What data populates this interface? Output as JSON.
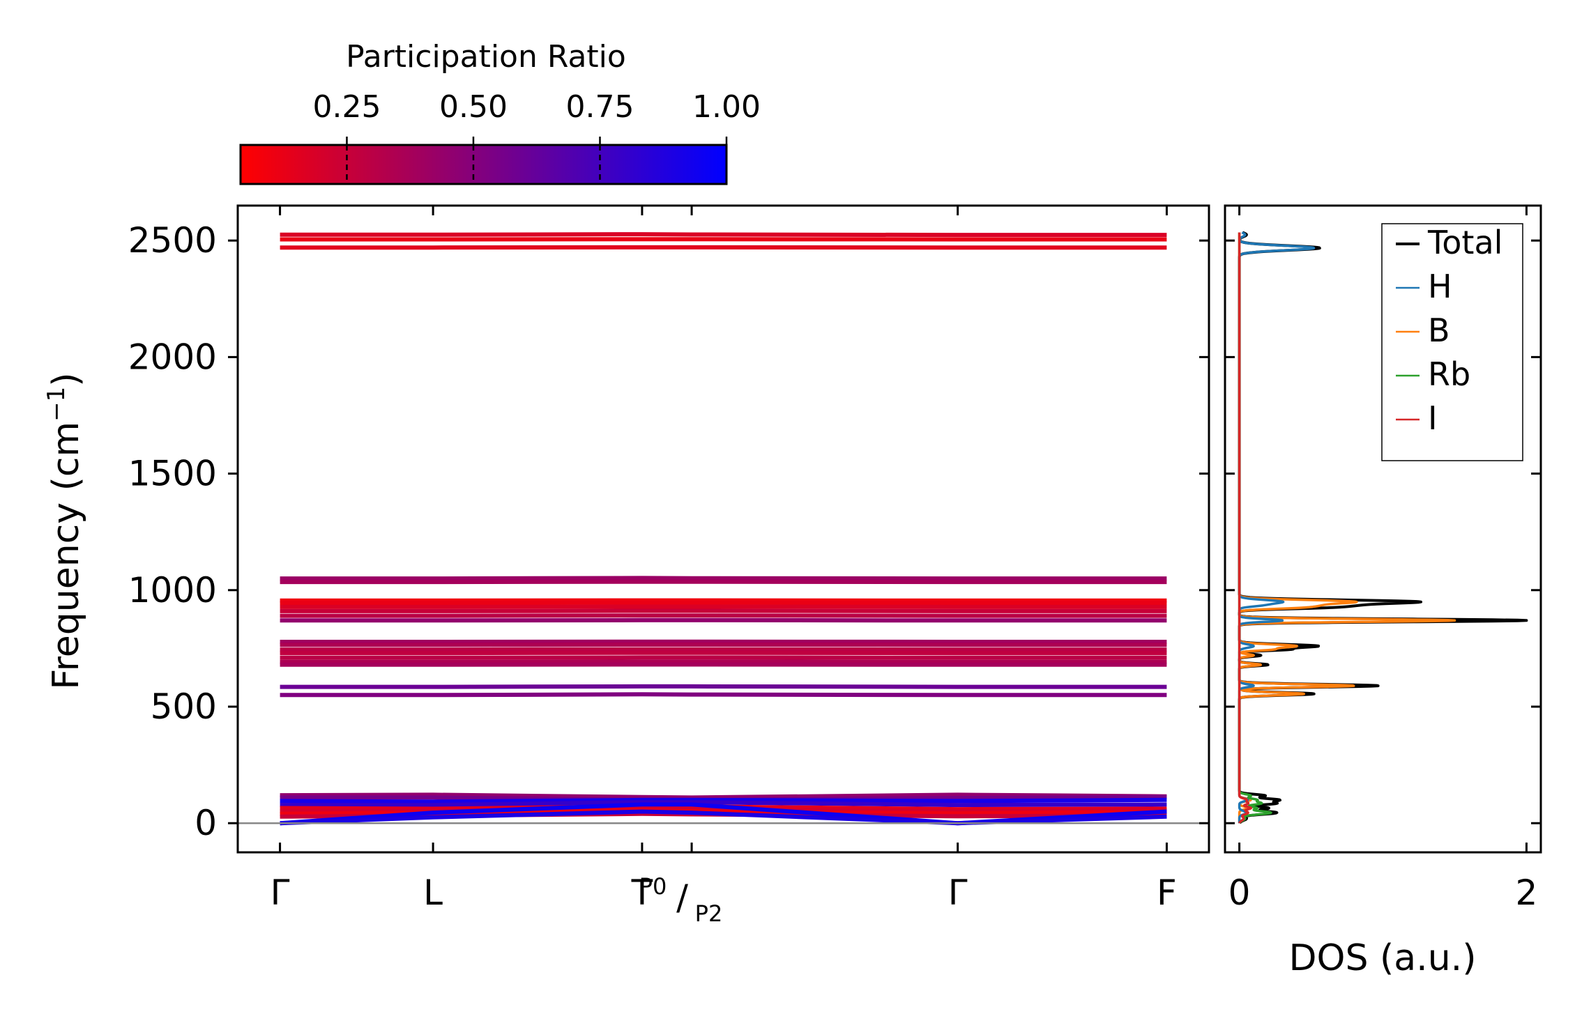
{
  "chart_data": [
    {
      "type": "line",
      "name": "phonon-band-structure",
      "ylabel_main": "Frequency (cm",
      "ylabel_sup": "−1",
      "ylabel_close": ")",
      "ylim": [
        -125,
        2650
      ],
      "yticks": [
        0,
        500,
        1000,
        1500,
        2000,
        2500
      ],
      "ytick_labels": [
        "0",
        "500",
        "1000",
        "1500",
        "2000",
        "2500"
      ],
      "x_positions": [
        0,
        0.725,
        1.715,
        1.95,
        3.21,
        4.2
      ],
      "xlim": [
        -0.2,
        4.4
      ],
      "kpoint_labels": [
        "Γ",
        "L",
        "T",
        "Γ",
        "F"
      ],
      "kpoint_index": [
        0,
        1,
        2,
        4,
        5
      ],
      "discontinuity_label": {
        "main": "/",
        "sub_left": "P0",
        "sub_right": "P2"
      },
      "zero_line": 0,
      "colorbar": {
        "title": "Participation Ratio",
        "range": [
          0.04,
          1.0
        ],
        "ticks": [
          0.25,
          0.5,
          0.75,
          1.0
        ],
        "tick_labels": [
          "0.25",
          "0.50",
          "0.75",
          "1.00"
        ],
        "color_low": "#ff0000",
        "color_mid": "#800080",
        "color_high": "#0000ff"
      },
      "series": [
        {
          "name": "band-high-1",
          "freq": [
            2525,
            2525,
            2527,
            2526,
            2524,
            2524
          ],
          "pr": 0.18
        },
        {
          "name": "band-high-2",
          "freq": [
            2505,
            2505,
            2506,
            2506,
            2505,
            2505
          ],
          "pr": 0.12
        },
        {
          "name": "band-high-3",
          "freq": [
            2470,
            2470,
            2471,
            2471,
            2470,
            2470
          ],
          "pr": 0.15
        },
        {
          "name": "band-1050",
          "freq": [
            1050,
            1050,
            1052,
            1051,
            1050,
            1050
          ],
          "pr": 0.42
        },
        {
          "name": "band-1035",
          "freq": [
            1035,
            1035,
            1036,
            1036,
            1035,
            1035
          ],
          "pr": 0.38
        },
        {
          "name": "band-955",
          "freq": [
            955,
            955,
            956,
            956,
            955,
            955
          ],
          "pr": 0.1
        },
        {
          "name": "band-945",
          "freq": [
            945,
            945,
            946,
            946,
            945,
            945
          ],
          "pr": 0.12
        },
        {
          "name": "band-930",
          "freq": [
            928,
            928,
            929,
            929,
            928,
            928
          ],
          "pr": 0.18
        },
        {
          "name": "band-910",
          "freq": [
            910,
            910,
            911,
            911,
            910,
            910
          ],
          "pr": 0.25
        },
        {
          "name": "band-890",
          "freq": [
            890,
            890,
            891,
            891,
            890,
            890
          ],
          "pr": 0.3
        },
        {
          "name": "band-870",
          "freq": [
            870,
            870,
            871,
            871,
            870,
            870
          ],
          "pr": 0.45
        },
        {
          "name": "band-780",
          "freq": [
            778,
            778,
            779,
            779,
            778,
            778
          ],
          "pr": 0.4
        },
        {
          "name": "band-765",
          "freq": [
            765,
            765,
            766,
            766,
            765,
            765
          ],
          "pr": 0.35
        },
        {
          "name": "band-745",
          "freq": [
            745,
            745,
            746,
            746,
            745,
            745
          ],
          "pr": 0.3
        },
        {
          "name": "band-730",
          "freq": [
            730,
            730,
            731,
            731,
            730,
            730
          ],
          "pr": 0.28
        },
        {
          "name": "band-710",
          "freq": [
            710,
            710,
            711,
            711,
            710,
            710
          ],
          "pr": 0.3
        },
        {
          "name": "band-690",
          "freq": [
            692,
            692,
            693,
            693,
            692,
            692
          ],
          "pr": 0.35
        },
        {
          "name": "band-680",
          "freq": [
            680,
            680,
            681,
            681,
            680,
            680
          ],
          "pr": 0.38
        },
        {
          "name": "band-585",
          "freq": [
            585,
            585,
            587,
            587,
            585,
            585
          ],
          "pr": 0.6
        },
        {
          "name": "band-550",
          "freq": [
            550,
            550,
            553,
            552,
            550,
            550
          ],
          "pr": 0.52
        },
        {
          "name": "band-low-1",
          "freq": [
            120,
            122,
            112,
            110,
            122,
            115
          ],
          "pr": 0.45
        },
        {
          "name": "band-low-2",
          "freq": [
            110,
            110,
            100,
            100,
            108,
            112
          ],
          "pr": 0.55
        },
        {
          "name": "band-low-3",
          "freq": [
            95,
            92,
            100,
            100,
            95,
            100
          ],
          "pr": 0.92
        },
        {
          "name": "band-low-4",
          "freq": [
            78,
            78,
            90,
            90,
            78,
            80
          ],
          "pr": 0.8
        },
        {
          "name": "band-low-5",
          "freq": [
            65,
            62,
            72,
            72,
            60,
            62
          ],
          "pr": 0.15
        },
        {
          "name": "band-low-6",
          "freq": [
            50,
            52,
            60,
            58,
            50,
            55
          ],
          "pr": 0.2
        },
        {
          "name": "band-low-7",
          "freq": [
            40,
            45,
            55,
            50,
            42,
            48
          ],
          "pr": 0.1
        },
        {
          "name": "band-low-8",
          "freq": [
            28,
            32,
            40,
            38,
            30,
            32
          ],
          "pr": 0.25
        },
        {
          "name": "band-acoustic-1",
          "freq": [
            0,
            45,
            80,
            80,
            0,
            50
          ],
          "pr": 0.95
        },
        {
          "name": "band-acoustic-2",
          "freq": [
            0,
            25,
            50,
            45,
            0,
            28
          ],
          "pr": 0.9
        }
      ]
    },
    {
      "type": "line",
      "name": "density-of-states",
      "xlabel": "DOS (a.u.)",
      "xlim": [
        -0.1,
        2.1
      ],
      "xticks": [
        0,
        2
      ],
      "xtick_labels": [
        "0",
        "2"
      ],
      "ylim": [
        -125,
        2650
      ],
      "legend_position": "top-right",
      "legend": [
        {
          "label": "Total",
          "color": "#000000"
        },
        {
          "label": "H",
          "color": "#1f77b4"
        },
        {
          "label": "B",
          "color": "#ff7f0e"
        },
        {
          "label": "Rb",
          "color": "#2ca02c"
        },
        {
          "label": "I",
          "color": "#d62728"
        }
      ],
      "series": [
        {
          "name": "Total",
          "color": "#000000",
          "peaks": [
            [
              2468,
              0.56,
              10
            ],
            [
              2525,
              0.05,
              8
            ],
            [
              950,
              1.24,
              8
            ],
            [
              935,
              0.5,
              6
            ],
            [
              925,
              0.5,
              6
            ],
            [
              870,
              2.0,
              6
            ],
            [
              760,
              0.55,
              7
            ],
            [
              745,
              0.3,
              5
            ],
            [
              720,
              0.15,
              5
            ],
            [
              680,
              0.2,
              5
            ],
            [
              590,
              0.97,
              6
            ],
            [
              555,
              0.52,
              6
            ],
            [
              118,
              0.18,
              6
            ],
            [
              100,
              0.27,
              6
            ],
            [
              85,
              0.25,
              6
            ],
            [
              65,
              0.2,
              6
            ],
            [
              45,
              0.26,
              7
            ],
            [
              20,
              0.05,
              8
            ]
          ]
        },
        {
          "name": "B",
          "color": "#ff7f0e",
          "peaks": [
            [
              950,
              0.8,
              8
            ],
            [
              935,
              0.35,
              6
            ],
            [
              925,
              0.35,
              6
            ],
            [
              870,
              1.5,
              6
            ],
            [
              760,
              0.4,
              7
            ],
            [
              745,
              0.2,
              5
            ],
            [
              720,
              0.1,
              5
            ],
            [
              680,
              0.15,
              5
            ],
            [
              590,
              0.8,
              6
            ],
            [
              555,
              0.45,
              6
            ],
            [
              100,
              0.08,
              6
            ],
            [
              65,
              0.06,
              6
            ]
          ]
        },
        {
          "name": "H",
          "color": "#1f77b4",
          "peaks": [
            [
              2468,
              0.52,
              10
            ],
            [
              2525,
              0.04,
              8
            ],
            [
              950,
              0.3,
              8
            ],
            [
              935,
              0.12,
              6
            ],
            [
              870,
              0.3,
              6
            ],
            [
              760,
              0.1,
              7
            ],
            [
              590,
              0.1,
              6
            ],
            [
              100,
              0.06,
              6
            ],
            [
              45,
              0.05,
              7
            ]
          ]
        },
        {
          "name": "Rb",
          "color": "#2ca02c",
          "peaks": [
            [
              118,
              0.08,
              6
            ],
            [
              100,
              0.12,
              6
            ],
            [
              85,
              0.15,
              6
            ],
            [
              65,
              0.12,
              6
            ],
            [
              45,
              0.22,
              7
            ],
            [
              20,
              0.04,
              8
            ]
          ]
        },
        {
          "name": "I",
          "color": "#d62728",
          "peaks": [
            [
              100,
              0.05,
              6
            ],
            [
              85,
              0.06,
              6
            ],
            [
              65,
              0.08,
              6
            ],
            [
              45,
              0.06,
              7
            ],
            [
              20,
              0.03,
              8
            ]
          ]
        }
      ]
    }
  ]
}
